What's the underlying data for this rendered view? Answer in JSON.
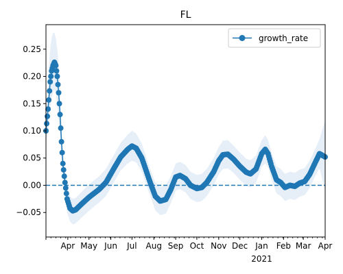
{
  "chart_data": {
    "type": "line",
    "title": "FL",
    "xlabel": "",
    "ylabel": "",
    "x_axis": {
      "type": "date",
      "range": [
        "2020-03-01",
        "2021-04-01"
      ],
      "tick_labels": [
        {
          "date": "2020-04-01",
          "label": "Apr"
        },
        {
          "date": "2020-05-01",
          "label": "May"
        },
        {
          "date": "2020-06-01",
          "label": "Jun"
        },
        {
          "date": "2020-07-01",
          "label": "Jul"
        },
        {
          "date": "2020-08-01",
          "label": "Aug"
        },
        {
          "date": "2020-09-01",
          "label": "Sep"
        },
        {
          "date": "2020-10-01",
          "label": "Oct"
        },
        {
          "date": "2020-11-01",
          "label": "Nov"
        },
        {
          "date": "2020-12-01",
          "label": "Dec"
        },
        {
          "date": "2021-01-01",
          "label": "Jan"
        },
        {
          "date": "2021-02-01",
          "label": "Feb"
        },
        {
          "date": "2021-03-01",
          "label": "Mar"
        },
        {
          "date": "2021-04-01",
          "label": "Apr"
        }
      ],
      "year_label": {
        "date": "2021-01-01",
        "label": "2021"
      }
    },
    "y_axis": {
      "range": [
        -0.095,
        0.295
      ],
      "tick_labels": [
        {
          "value": -0.05,
          "label": "−0.05"
        },
        {
          "value": 0.0,
          "label": "0.00"
        },
        {
          "value": 0.05,
          "label": "0.05"
        },
        {
          "value": 0.1,
          "label": "0.10"
        },
        {
          "value": 0.15,
          "label": "0.15"
        },
        {
          "value": 0.2,
          "label": "0.20"
        },
        {
          "value": 0.25,
          "label": "0.25"
        }
      ]
    },
    "grid": false,
    "legend": {
      "position": "top-right",
      "entries": [
        "growth_rate"
      ]
    },
    "reference_line": {
      "y": 0.0,
      "style": "dashed",
      "color": "#1f77b4"
    },
    "colors": {
      "series": "#1f77b4",
      "band": "#d5e5f4"
    },
    "series": [
      {
        "name": "growth_rate",
        "marker": "circle",
        "points": [
          [
            "2020-03-01",
            0.1
          ],
          [
            "2020-03-04",
            0.14
          ],
          [
            "2020-03-07",
            0.19
          ],
          [
            "2020-03-09",
            0.21
          ],
          [
            "2020-03-11",
            0.22
          ],
          [
            "2020-03-13",
            0.226
          ],
          [
            "2020-03-15",
            0.22
          ],
          [
            "2020-03-17",
            0.2
          ],
          [
            "2020-03-19",
            0.17
          ],
          [
            "2020-03-21",
            0.13
          ],
          [
            "2020-03-23",
            0.08
          ],
          [
            "2020-03-25",
            0.04
          ],
          [
            "2020-03-28",
            0.005
          ],
          [
            "2020-03-31",
            -0.025
          ],
          [
            "2020-04-04",
            -0.042
          ],
          [
            "2020-04-08",
            -0.047
          ],
          [
            "2020-04-12",
            -0.045
          ],
          [
            "2020-04-20",
            -0.035
          ],
          [
            "2020-05-01",
            -0.022
          ],
          [
            "2020-05-15",
            -0.008
          ],
          [
            "2020-05-25",
            0.005
          ],
          [
            "2020-06-05",
            0.03
          ],
          [
            "2020-06-15",
            0.052
          ],
          [
            "2020-06-25",
            0.066
          ],
          [
            "2020-07-01",
            0.072
          ],
          [
            "2020-07-07",
            0.068
          ],
          [
            "2020-07-15",
            0.05
          ],
          [
            "2020-07-25",
            0.012
          ],
          [
            "2020-08-03",
            -0.02
          ],
          [
            "2020-08-10",
            -0.029
          ],
          [
            "2020-08-18",
            -0.026
          ],
          [
            "2020-08-25",
            -0.008
          ],
          [
            "2020-09-01",
            0.015
          ],
          [
            "2020-09-07",
            0.018
          ],
          [
            "2020-09-15",
            0.012
          ],
          [
            "2020-09-22",
            0.0
          ],
          [
            "2020-10-01",
            -0.006
          ],
          [
            "2020-10-08",
            -0.004
          ],
          [
            "2020-10-15",
            0.005
          ],
          [
            "2020-10-25",
            0.025
          ],
          [
            "2020-11-01",
            0.045
          ],
          [
            "2020-11-07",
            0.056
          ],
          [
            "2020-11-14",
            0.057
          ],
          [
            "2020-11-22",
            0.048
          ],
          [
            "2020-12-01",
            0.035
          ],
          [
            "2020-12-10",
            0.024
          ],
          [
            "2020-12-16",
            0.021
          ],
          [
            "2020-12-24",
            0.03
          ],
          [
            "2021-01-01",
            0.058
          ],
          [
            "2021-01-06",
            0.066
          ],
          [
            "2021-01-10",
            0.058
          ],
          [
            "2021-01-15",
            0.035
          ],
          [
            "2021-01-22",
            0.01
          ],
          [
            "2021-01-28",
            0.005
          ],
          [
            "2021-02-03",
            -0.004
          ],
          [
            "2021-02-10",
            0.0
          ],
          [
            "2021-02-17",
            -0.002
          ],
          [
            "2021-02-24",
            0.004
          ],
          [
            "2021-03-03",
            0.007
          ],
          [
            "2021-03-10",
            0.02
          ],
          [
            "2021-03-18",
            0.042
          ],
          [
            "2021-03-24",
            0.058
          ],
          [
            "2021-04-01",
            0.052
          ]
        ],
        "ci_band": [
          [
            "2020-03-01",
            0.08,
            0.12
          ],
          [
            "2020-03-04",
            0.1,
            0.2
          ],
          [
            "2020-03-07",
            0.14,
            0.25
          ],
          [
            "2020-03-09",
            0.16,
            0.27
          ],
          [
            "2020-03-11",
            0.17,
            0.28
          ],
          [
            "2020-03-13",
            0.175,
            0.28
          ],
          [
            "2020-03-15",
            0.17,
            0.27
          ],
          [
            "2020-03-17",
            0.15,
            0.25
          ],
          [
            "2020-03-19",
            0.12,
            0.22
          ],
          [
            "2020-03-21",
            0.09,
            0.17
          ],
          [
            "2020-03-23",
            0.05,
            0.11
          ],
          [
            "2020-03-25",
            0.015,
            0.065
          ],
          [
            "2020-03-28",
            -0.02,
            0.03
          ],
          [
            "2020-03-31",
            -0.05,
            0.0
          ],
          [
            "2020-04-04",
            -0.066,
            -0.02
          ],
          [
            "2020-04-08",
            -0.072,
            -0.025
          ],
          [
            "2020-04-12",
            -0.07,
            -0.023
          ],
          [
            "2020-04-20",
            -0.06,
            -0.013
          ],
          [
            "2020-05-01",
            -0.047,
            0.002
          ],
          [
            "2020-05-15",
            -0.032,
            0.016
          ],
          [
            "2020-05-25",
            -0.02,
            0.03
          ],
          [
            "2020-06-05",
            0.005,
            0.055
          ],
          [
            "2020-06-15",
            0.027,
            0.078
          ],
          [
            "2020-06-25",
            0.04,
            0.093
          ],
          [
            "2020-07-01",
            0.045,
            0.1
          ],
          [
            "2020-07-07",
            0.042,
            0.095
          ],
          [
            "2020-07-15",
            0.025,
            0.076
          ],
          [
            "2020-07-25",
            -0.013,
            0.037
          ],
          [
            "2020-08-03",
            -0.046,
            0.005
          ],
          [
            "2020-08-10",
            -0.055,
            -0.003
          ],
          [
            "2020-08-18",
            -0.052,
            0.0
          ],
          [
            "2020-08-25",
            -0.033,
            0.017
          ],
          [
            "2020-09-01",
            -0.01,
            0.04
          ],
          [
            "2020-09-07",
            -0.007,
            0.043
          ],
          [
            "2020-09-15",
            -0.013,
            0.037
          ],
          [
            "2020-09-22",
            -0.025,
            0.025
          ],
          [
            "2020-10-01",
            -0.031,
            0.019
          ],
          [
            "2020-10-08",
            -0.029,
            0.021
          ],
          [
            "2020-10-15",
            -0.02,
            0.03
          ],
          [
            "2020-10-25",
            0.0,
            0.05
          ],
          [
            "2020-11-01",
            0.02,
            0.07
          ],
          [
            "2020-11-07",
            0.03,
            0.082
          ],
          [
            "2020-11-14",
            0.031,
            0.083
          ],
          [
            "2020-11-22",
            0.023,
            0.073
          ],
          [
            "2020-12-01",
            0.01,
            0.06
          ],
          [
            "2020-12-10",
            -0.001,
            0.049
          ],
          [
            "2020-12-16",
            -0.004,
            0.046
          ],
          [
            "2020-12-24",
            0.005,
            0.055
          ],
          [
            "2021-01-01",
            0.033,
            0.083
          ],
          [
            "2021-01-06",
            0.04,
            0.092
          ],
          [
            "2021-01-10",
            0.033,
            0.083
          ],
          [
            "2021-01-15",
            0.01,
            0.06
          ],
          [
            "2021-01-22",
            -0.015,
            0.035
          ],
          [
            "2021-01-28",
            -0.02,
            0.03
          ],
          [
            "2021-02-03",
            -0.029,
            0.021
          ],
          [
            "2021-02-10",
            -0.025,
            0.025
          ],
          [
            "2021-02-17",
            -0.027,
            0.023
          ],
          [
            "2021-02-24",
            -0.021,
            0.029
          ],
          [
            "2021-03-03",
            -0.018,
            0.032
          ],
          [
            "2021-03-10",
            -0.005,
            0.045
          ],
          [
            "2021-03-18",
            0.017,
            0.067
          ],
          [
            "2021-03-24",
            0.031,
            0.085
          ],
          [
            "2021-04-01",
            -0.01,
            0.12
          ]
        ]
      }
    ]
  }
}
